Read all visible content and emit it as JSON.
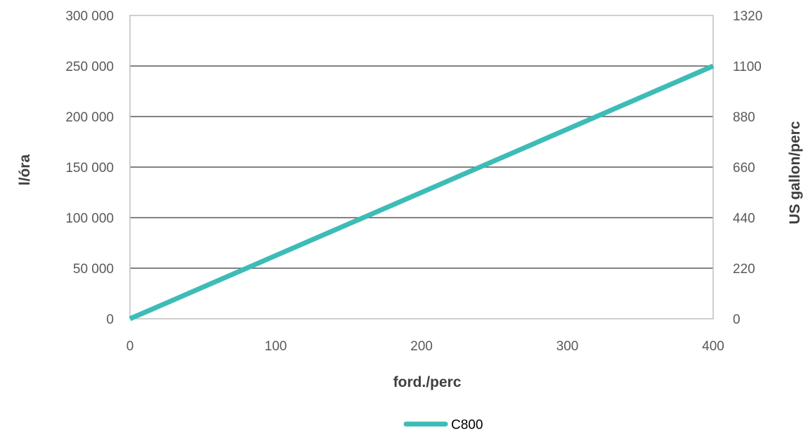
{
  "chart_data": {
    "type": "line",
    "x": [
      0,
      400
    ],
    "series": [
      {
        "name": "C800",
        "values": [
          0,
          250000
        ]
      }
    ],
    "xlim": [
      0,
      400
    ],
    "xticks": [
      0,
      100,
      200,
      300,
      400
    ],
    "xtick_labels": [
      "0",
      "100",
      "200",
      "300",
      "400"
    ],
    "ylim": [
      0,
      300000
    ],
    "yticks": [
      0,
      50000,
      100000,
      150000,
      200000,
      250000,
      300000
    ],
    "ytick_labels": [
      "0",
      "50 000",
      "100 000",
      "150 000",
      "200 000",
      "250 000",
      "300 000"
    ],
    "y2lim": [
      0,
      1320
    ],
    "y2ticks": [
      0,
      220,
      440,
      660,
      880,
      1100,
      1320
    ],
    "y2tick_labels": [
      "0",
      "220",
      "440",
      "660",
      "880",
      "1100",
      "1320"
    ],
    "xlabel": "ford./perc",
    "ylabel": "l/óra",
    "y2label": "US gallon/perc",
    "grid": "horizontal",
    "legend_position": "bottom",
    "colors": {
      "series": "#3dbcb7",
      "grid": "#595959",
      "frame": "#bfbfbf"
    }
  }
}
